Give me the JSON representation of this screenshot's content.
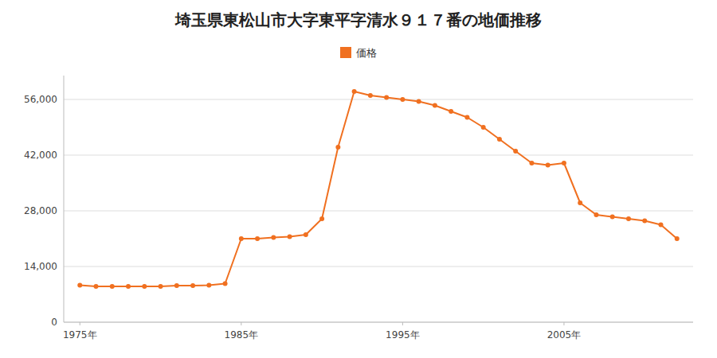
{
  "chart_data": {
    "type": "line",
    "title": "埼玉県東松山市大字東平字清水９１７番の地価推移",
    "x": [
      1975,
      1976,
      1977,
      1978,
      1979,
      1980,
      1981,
      1982,
      1983,
      1984,
      1985,
      1986,
      1987,
      1988,
      1989,
      1990,
      1991,
      1992,
      1993,
      1994,
      1995,
      1996,
      1997,
      1998,
      1999,
      2000,
      2001,
      2002,
      2003,
      2004,
      2005,
      2006,
      2007,
      2008,
      2009,
      2010,
      2011,
      2012
    ],
    "series": [
      {
        "name": "価格",
        "color": "#F07020",
        "marker": "circle",
        "values": [
          9300,
          9000,
          9000,
          9000,
          9000,
          9000,
          9200,
          9200,
          9300,
          9700,
          21000,
          21000,
          21300,
          21500,
          22000,
          26000,
          44000,
          58000,
          57000,
          56500,
          56000,
          55500,
          54500,
          53000,
          51500,
          49000,
          46000,
          43000,
          40000,
          39500,
          40000,
          30000,
          27000,
          26500,
          26000,
          25500,
          24500,
          21000
        ]
      }
    ],
    "xlim": [
      1974,
      2013
    ],
    "xticks": [
      {
        "value": 1975,
        "label": "1975年"
      },
      {
        "value": 1985,
        "label": "1985年"
      },
      {
        "value": 1995,
        "label": "1995年"
      },
      {
        "value": 2005,
        "label": "2005年"
      }
    ],
    "ylim": [
      0,
      62000
    ],
    "yticks": [
      0,
      {
        "value": 14000,
        "label": "14,000"
      },
      {
        "value": 28000,
        "label": "28,000"
      },
      {
        "value": 42000,
        "label": "42,000"
      },
      {
        "value": 56000,
        "label": "56,000"
      }
    ],
    "grid": true,
    "legend": "top"
  }
}
